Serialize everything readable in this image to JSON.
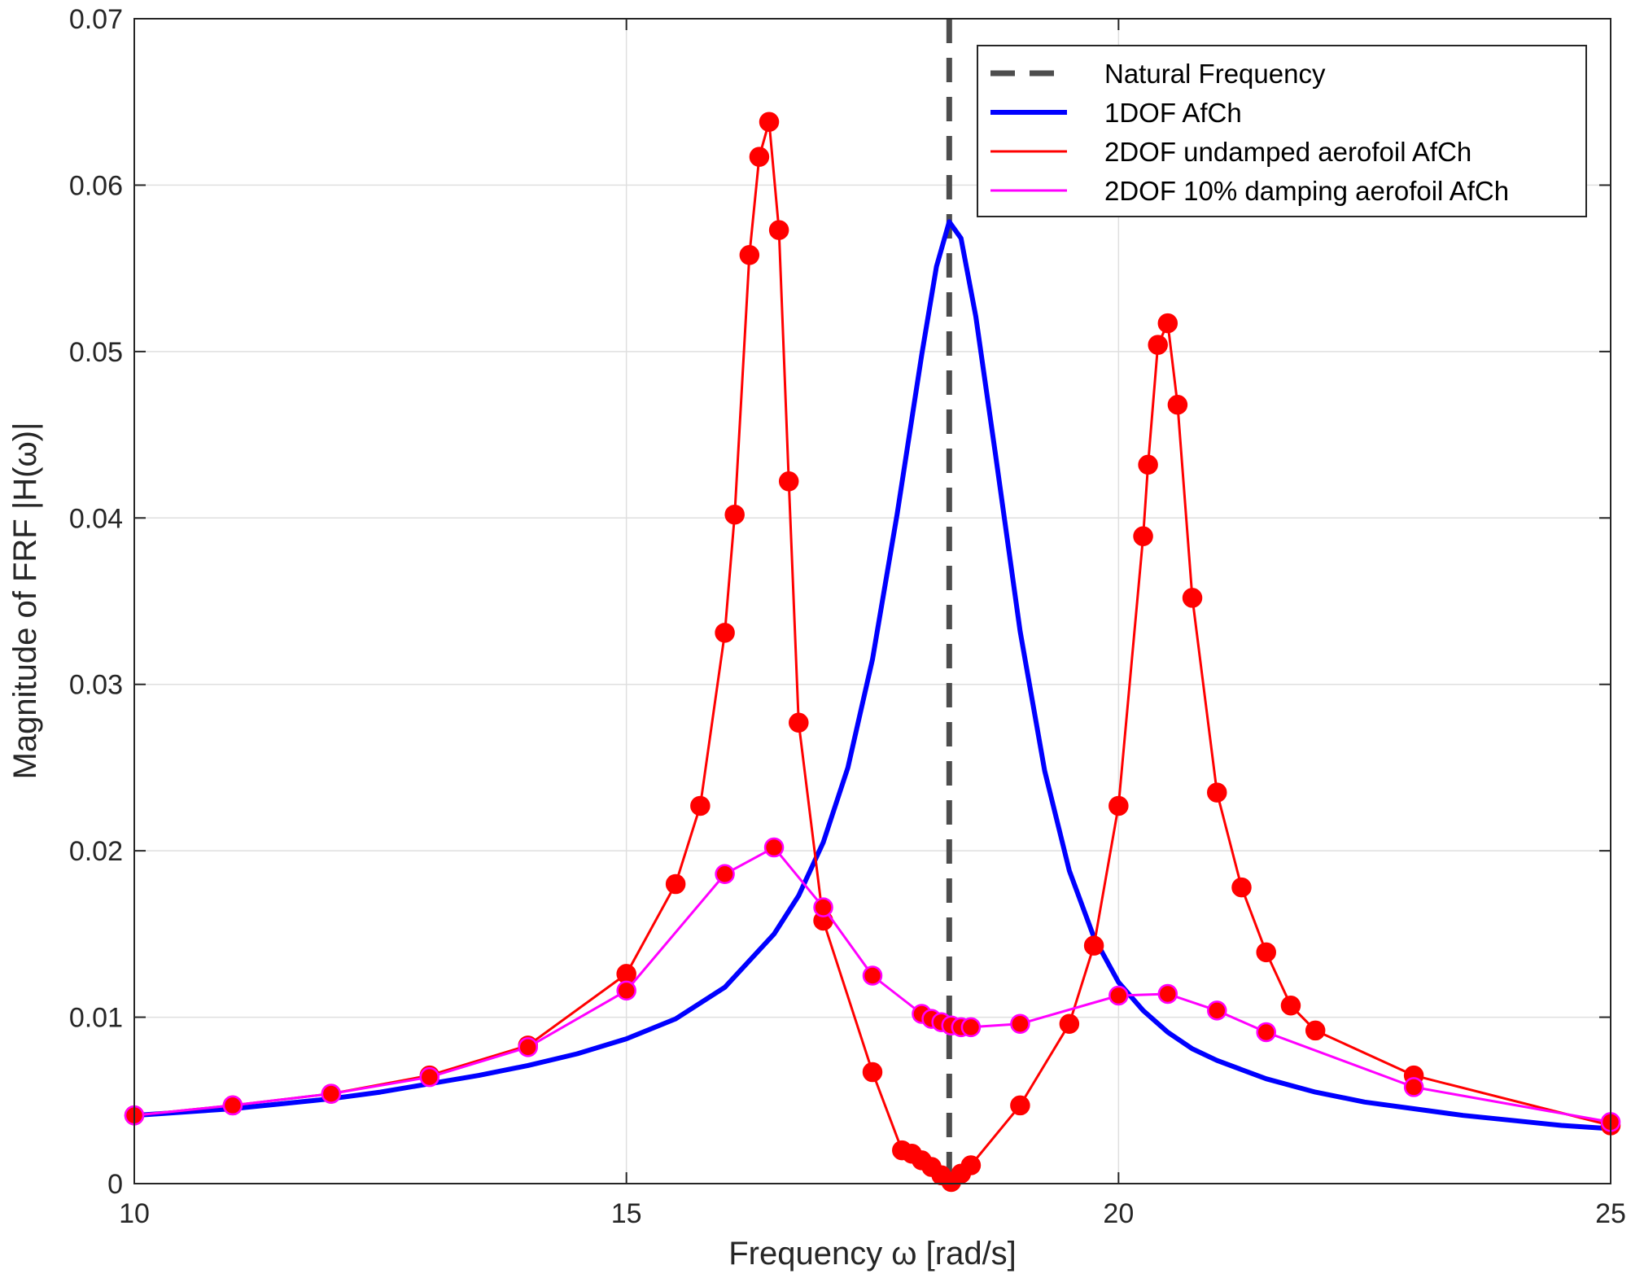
{
  "chart_data": {
    "type": "line",
    "xlabel": "Frequency ω [rad/s]",
    "ylabel": "Magnitude of FRF |H(ω)|",
    "xlim": [
      10,
      25
    ],
    "ylim": [
      0,
      0.07
    ],
    "xticks": [
      10,
      15,
      20,
      25
    ],
    "xtick_labels": [
      "10",
      "15",
      "20",
      "25"
    ],
    "yticks": [
      0,
      0.01,
      0.02,
      0.03,
      0.04,
      0.05,
      0.06,
      0.07
    ],
    "ytick_labels": [
      "0",
      "0.01",
      "0.02",
      "0.03",
      "0.04",
      "0.05",
      "0.06",
      "0.07"
    ],
    "grid": true,
    "legend_position": "top-right",
    "natural_frequency": 18.28,
    "series": [
      {
        "name": "Natural Frequency",
        "kind": "vertical-line",
        "x": 18.28,
        "color": "#4d4d4d",
        "style": "dashed"
      },
      {
        "name": "1DOF AfCh",
        "kind": "line",
        "color": "#0000ff",
        "x": [
          10,
          10.5,
          11,
          11.5,
          12,
          12.5,
          13,
          13.5,
          14,
          14.5,
          15,
          15.5,
          16,
          16.5,
          16.75,
          17,
          17.25,
          17.5,
          17.75,
          18,
          18.15,
          18.28,
          18.4,
          18.55,
          18.75,
          19,
          19.25,
          19.5,
          19.75,
          20,
          20.25,
          20.5,
          20.75,
          21,
          21.5,
          22,
          22.5,
          23,
          23.5,
          24,
          24.5,
          25
        ],
        "y": [
          0.0041,
          0.0043,
          0.0045,
          0.0048,
          0.0051,
          0.0055,
          0.006,
          0.0065,
          0.0071,
          0.0078,
          0.0087,
          0.0099,
          0.0118,
          0.015,
          0.0173,
          0.0205,
          0.025,
          0.0315,
          0.0402,
          0.0498,
          0.0551,
          0.0578,
          0.0568,
          0.0521,
          0.0438,
          0.0332,
          0.0248,
          0.0188,
          0.0148,
          0.0121,
          0.0104,
          0.0091,
          0.0081,
          0.0074,
          0.0063,
          0.0055,
          0.0049,
          0.0045,
          0.0041,
          0.0038,
          0.0035,
          0.0033
        ]
      },
      {
        "name": "2DOF undamped aerofoil AfCh",
        "kind": "line-markers",
        "color": "#ff0000",
        "marker_color": "#ff0000",
        "x": [
          10,
          11,
          12,
          13,
          14,
          15,
          15.5,
          15.75,
          16,
          16.1,
          16.25,
          16.35,
          16.45,
          16.55,
          16.65,
          16.75,
          17,
          17.5,
          17.8,
          17.9,
          18,
          18.1,
          18.2,
          18.3,
          18.4,
          18.5,
          19,
          19.5,
          19.75,
          20,
          20.25,
          20.3,
          20.4,
          20.5,
          20.6,
          20.75,
          21,
          21.25,
          21.5,
          21.75,
          22,
          23,
          25
        ],
        "y": [
          0.0041,
          0.0047,
          0.0054,
          0.0065,
          0.0083,
          0.0126,
          0.018,
          0.0227,
          0.0331,
          0.0402,
          0.0558,
          0.0617,
          0.0638,
          0.0573,
          0.0422,
          0.0277,
          0.0158,
          0.0067,
          0.002,
          0.0018,
          0.0014,
          0.001,
          0.0005,
          0.0001,
          0.0006,
          0.0011,
          0.0047,
          0.0096,
          0.0143,
          0.0227,
          0.0389,
          0.0432,
          0.0504,
          0.0517,
          0.0468,
          0.0352,
          0.0235,
          0.0178,
          0.0139,
          0.0107,
          0.0092,
          0.0065,
          0.0035
        ]
      },
      {
        "name": "2DOF 10% damping aerofoil AfCh",
        "kind": "line-markers",
        "color": "#ff00ff",
        "marker_color": "#ff0000",
        "x": [
          10,
          11,
          12,
          13,
          14,
          15,
          16,
          16.5,
          17,
          17.5,
          18,
          18.1,
          18.2,
          18.3,
          18.4,
          18.5,
          19,
          20,
          20.5,
          21,
          21.5,
          23,
          25
        ],
        "y": [
          0.0041,
          0.0047,
          0.0054,
          0.0064,
          0.0082,
          0.0116,
          0.0186,
          0.0202,
          0.0166,
          0.0125,
          0.0102,
          0.0099,
          0.0097,
          0.0095,
          0.0094,
          0.0094,
          0.0096,
          0.0113,
          0.0114,
          0.0104,
          0.0091,
          0.0058,
          0.0037
        ]
      }
    ]
  }
}
